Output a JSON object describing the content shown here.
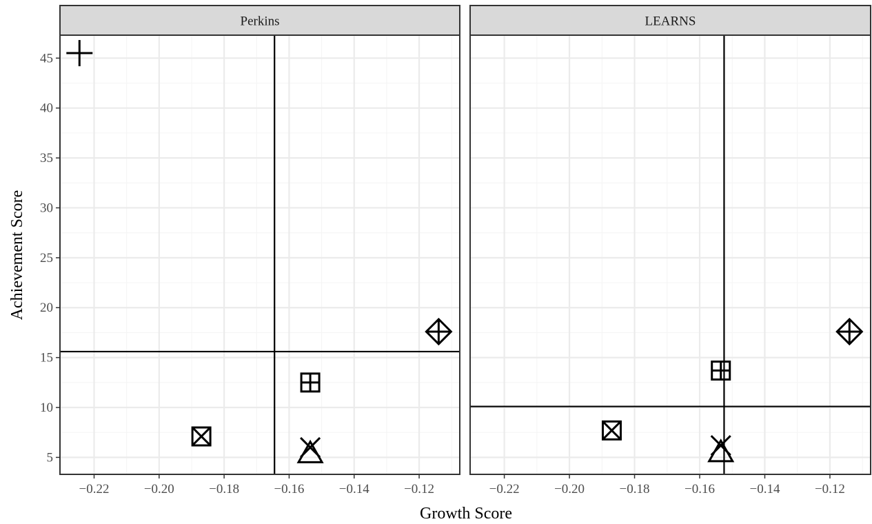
{
  "chart_data": {
    "type": "scatter",
    "xlabel": "Growth Score",
    "ylabel": "Achievement Score",
    "xlim": [
      -0.2305,
      -0.1075
    ],
    "ylim": [
      3.3,
      47.3
    ],
    "x_ticks": [
      -0.22,
      -0.2,
      -0.18,
      -0.16,
      -0.14,
      -0.12
    ],
    "x_tick_labels": [
      "−0.22",
      "−0.20",
      "−0.18",
      "−0.16",
      "−0.14",
      "−0.12"
    ],
    "y_ticks": [
      5,
      10,
      15,
      20,
      25,
      30,
      35,
      40,
      45
    ],
    "y_tick_labels": [
      "5",
      "10",
      "15",
      "20",
      "25",
      "30",
      "35",
      "40",
      "45"
    ],
    "grid": true,
    "facets": [
      {
        "label": "Perkins",
        "vline": -0.1645,
        "hline": 15.6,
        "points": [
          {
            "shape": "plus",
            "x": -0.2245,
            "y": 45.5
          },
          {
            "shape": "diamond-plus",
            "x": -0.114,
            "y": 17.6
          },
          {
            "shape": "square-plus",
            "x": -0.1535,
            "y": 12.5
          },
          {
            "shape": "square-cross",
            "x": -0.187,
            "y": 7.1
          },
          {
            "shape": "cross",
            "x": -0.1535,
            "y": 6.0
          },
          {
            "shape": "triangle",
            "x": -0.1535,
            "y": 5.4
          }
        ]
      },
      {
        "label": "LEARNS",
        "vline": -0.1525,
        "hline": 10.1,
        "points": [
          {
            "shape": "diamond-plus",
            "x": -0.114,
            "y": 17.6
          },
          {
            "shape": "square-plus",
            "x": -0.1535,
            "y": 13.7
          },
          {
            "shape": "square-cross",
            "x": -0.187,
            "y": 7.7
          },
          {
            "shape": "cross",
            "x": -0.1535,
            "y": 6.2
          },
          {
            "shape": "triangle",
            "x": -0.1535,
            "y": 5.5
          }
        ]
      }
    ]
  }
}
